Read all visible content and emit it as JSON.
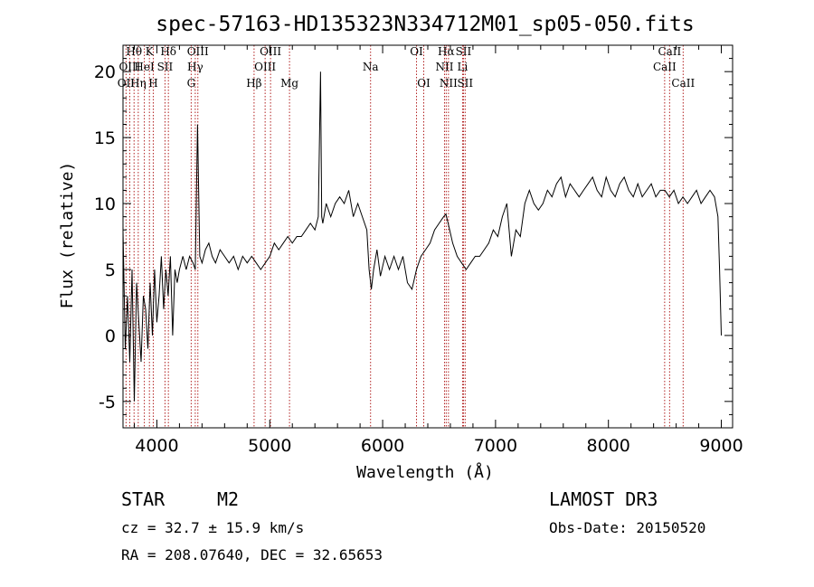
{
  "chart_data": {
    "type": "line",
    "title": "spec-57163-HD135323N334712M01_sp05-050.fits",
    "xlabel": "Wavelength (Å)",
    "ylabel": "Flux (relative)",
    "xlim": [
      3700,
      9100
    ],
    "ylim": [
      -7,
      22
    ],
    "xticks": [
      4000,
      5000,
      6000,
      7000,
      8000,
      9000
    ],
    "yticks": [
      -5,
      0,
      5,
      10,
      15,
      20
    ],
    "grid": false,
    "series": [
      {
        "name": "flux",
        "x": [
          3700,
          3720,
          3740,
          3760,
          3780,
          3800,
          3820,
          3840,
          3860,
          3880,
          3900,
          3920,
          3940,
          3960,
          3980,
          4000,
          4020,
          4040,
          4060,
          4080,
          4100,
          4120,
          4140,
          4160,
          4180,
          4200,
          4230,
          4260,
          4290,
          4320,
          4340,
          4360,
          4380,
          4400,
          4430,
          4460,
          4490,
          4520,
          4560,
          4600,
          4640,
          4680,
          4720,
          4760,
          4800,
          4840,
          4880,
          4920,
          4960,
          5000,
          5040,
          5080,
          5120,
          5160,
          5200,
          5240,
          5280,
          5320,
          5360,
          5400,
          5430,
          5450,
          5460,
          5470,
          5500,
          5540,
          5580,
          5620,
          5660,
          5700,
          5740,
          5780,
          5820,
          5860,
          5880,
          5900,
          5920,
          5950,
          5980,
          6020,
          6060,
          6100,
          6140,
          6180,
          6220,
          6260,
          6300,
          6340,
          6380,
          6420,
          6460,
          6500,
          6540,
          6560,
          6580,
          6620,
          6660,
          6700,
          6740,
          6780,
          6820,
          6860,
          6900,
          6940,
          6980,
          7020,
          7060,
          7100,
          7140,
          7180,
          7220,
          7260,
          7300,
          7340,
          7380,
          7420,
          7460,
          7500,
          7540,
          7580,
          7620,
          7660,
          7700,
          7740,
          7780,
          7820,
          7860,
          7900,
          7940,
          7980,
          8020,
          8060,
          8100,
          8140,
          8180,
          8220,
          8260,
          8300,
          8340,
          8380,
          8420,
          8460,
          8500,
          8540,
          8580,
          8620,
          8660,
          8700,
          8740,
          8780,
          8820,
          8860,
          8900,
          8940,
          8970,
          8985,
          9000
        ],
        "values": [
          8,
          -1,
          3,
          -2,
          5,
          -5,
          4,
          1,
          -2,
          3,
          2,
          -1,
          4,
          0,
          5,
          1,
          3,
          6,
          2,
          5,
          3,
          6,
          0,
          5,
          4,
          5,
          6,
          5,
          6,
          5.5,
          5,
          16,
          6,
          5.5,
          6.5,
          7,
          6,
          5.5,
          6.5,
          6,
          5.5,
          6,
          5,
          6,
          5.5,
          6,
          5.5,
          5,
          5.5,
          6,
          7,
          6.5,
          7,
          7.5,
          7,
          7.5,
          7.5,
          8,
          8.5,
          8,
          9,
          20,
          9,
          8.5,
          10,
          9,
          10,
          10.5,
          10,
          11,
          9,
          10,
          9,
          8,
          5,
          3.5,
          5,
          6.5,
          4.5,
          6,
          5,
          6,
          5,
          6,
          4,
          3.5,
          5,
          6,
          6.5,
          7,
          8,
          8.5,
          9,
          9.2,
          8.5,
          7,
          6,
          5.5,
          5,
          5.5,
          6,
          6,
          6.5,
          7,
          8,
          7.5,
          9,
          10,
          6,
          8,
          7.5,
          10,
          11,
          10,
          9.5,
          10,
          11,
          10.5,
          11.5,
          12,
          10.5,
          11.5,
          11,
          10.5,
          11,
          11.5,
          12,
          11,
          10.5,
          12,
          11,
          10.5,
          11.5,
          12,
          11,
          10.5,
          11.5,
          10.5,
          11,
          11.5,
          10.5,
          11,
          11,
          10.5,
          11,
          10,
          10.5,
          10,
          10.5,
          11,
          10,
          10.5,
          11,
          10.5,
          9,
          5,
          0
        ]
      }
    ],
    "spectral_lines": [
      {
        "label": "Hθ",
        "wavelength": 3798,
        "row": 0
      },
      {
        "label": "Hη",
        "wavelength": 3835,
        "row": 2
      },
      {
        "label": "OII",
        "wavelength": 3727,
        "row": 2
      },
      {
        "label": "OIII",
        "wavelength": 3760,
        "row": 1
      },
      {
        "label": "K",
        "wavelength": 3934,
        "row": 0
      },
      {
        "label": "HeI",
        "wavelength": 3889,
        "row": 1
      },
      {
        "label": "H",
        "wavelength": 3968,
        "row": 2
      },
      {
        "label": "SII",
        "wavelength": 4072,
        "row": 1
      },
      {
        "label": "Hδ",
        "wavelength": 4102,
        "row": 0
      },
      {
        "label": "OIII",
        "wavelength": 4363,
        "row": 0
      },
      {
        "label": "Hγ",
        "wavelength": 4340,
        "row": 1
      },
      {
        "label": "G",
        "wavelength": 4304,
        "row": 2
      },
      {
        "label": "Hβ",
        "wavelength": 4861,
        "row": 2
      },
      {
        "label": "OIII",
        "wavelength": 5007,
        "row": 0
      },
      {
        "label": "OIII",
        "wavelength": 4959,
        "row": 1
      },
      {
        "label": "Mg",
        "wavelength": 5175,
        "row": 2
      },
      {
        "label": "Na",
        "wavelength": 5893,
        "row": 1
      },
      {
        "label": "OI",
        "wavelength": 6300,
        "row": 0
      },
      {
        "label": "OI",
        "wavelength": 6364,
        "row": 2
      },
      {
        "label": "Hα",
        "wavelength": 6563,
        "row": 0
      },
      {
        "label": "NII",
        "wavelength": 6548,
        "row": 1
      },
      {
        "label": "NII",
        "wavelength": 6583,
        "row": 2
      },
      {
        "label": "SII",
        "wavelength": 6716,
        "row": 0
      },
      {
        "label": "Li",
        "wavelength": 6708,
        "row": 1
      },
      {
        "label": "SII",
        "wavelength": 6731,
        "row": 2
      },
      {
        "label": "CaII",
        "wavelength": 8542,
        "row": 0
      },
      {
        "label": "CaII",
        "wavelength": 8498,
        "row": 1
      },
      {
        "label": "CaII",
        "wavelength": 8662,
        "row": 2
      }
    ]
  },
  "info": {
    "object_class": "STAR",
    "subclass": "M2",
    "survey": "LAMOST DR3",
    "redshift": "cz = 32.7 ± 15.9 km/s",
    "obs_date": "Obs-Date: 20150520",
    "coords": "RA = 208.07640, DEC =  32.65653"
  },
  "colors": {
    "spectrum": "#000000",
    "line_marker": "#b22222",
    "axes": "#000000"
  }
}
